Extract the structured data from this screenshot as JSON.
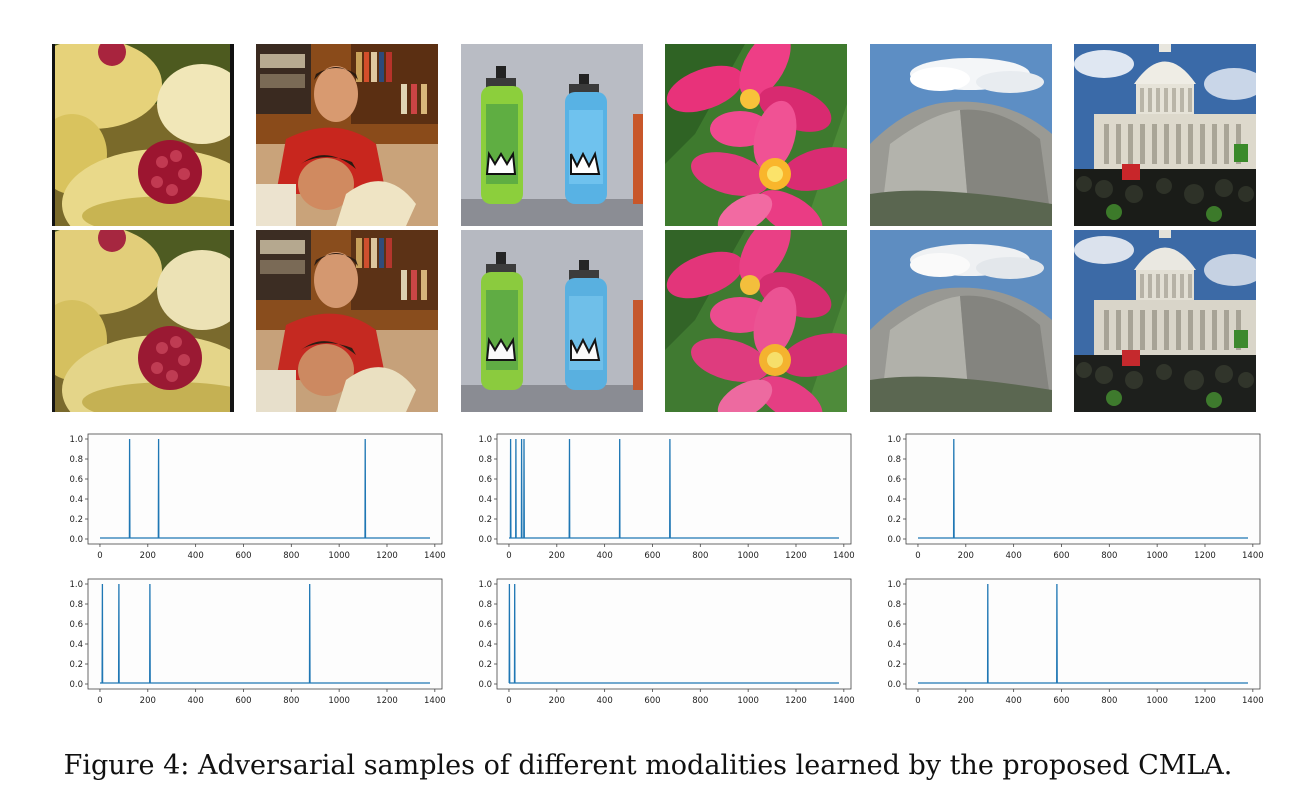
{
  "caption": "Figure 4: Adversarial samples of different modalities learned by the proposed CMLA.",
  "images": {
    "rows": [
      "original",
      "adversarial"
    ],
    "tiles": [
      "cupcakes-raspberry",
      "two-men-laughing",
      "spray-cans",
      "pink-plumeria-flower",
      "half-dome-mountain",
      "capitol-building-crowd"
    ]
  },
  "chart_data": [
    {
      "type": "line",
      "x": [
        0,
        123,
        124,
        125,
        244,
        245,
        246,
        1108,
        1109,
        1110,
        1380
      ],
      "y": [
        0.01,
        0.01,
        1.0,
        0.01,
        0.01,
        1.0,
        0.01,
        0.01,
        1.0,
        0.01,
        0.01
      ],
      "xlim": [
        -50,
        1430
      ],
      "ylim": [
        -0.05,
        1.05
      ],
      "xticks": [
        0,
        200,
        400,
        600,
        800,
        1000,
        1200,
        1400
      ],
      "yticks": [
        "0.0",
        "0.2",
        "0.4",
        "0.6",
        "0.8",
        "1.0"
      ],
      "color": "#1f77b4"
    },
    {
      "type": "line",
      "x": [
        0,
        6,
        7,
        8,
        28,
        29,
        30,
        52,
        53,
        54,
        62,
        63,
        64,
        252,
        253,
        254,
        462,
        463,
        464,
        672,
        673,
        674,
        1380
      ],
      "y": [
        0.01,
        0.01,
        1.0,
        0.01,
        0.01,
        1.0,
        0.01,
        0.01,
        1.0,
        0.01,
        0.01,
        1.0,
        0.01,
        0.01,
        1.0,
        0.01,
        0.01,
        1.0,
        0.01,
        0.01,
        1.0,
        0.01,
        0.01
      ],
      "xlim": [
        -50,
        1430
      ],
      "ylim": [
        -0.05,
        1.05
      ],
      "xticks": [
        0,
        200,
        400,
        600,
        800,
        1000,
        1200,
        1400
      ],
      "yticks": [
        "0.0",
        "0.2",
        "0.4",
        "0.6",
        "0.8",
        "1.0"
      ],
      "color": "#1f77b4"
    },
    {
      "type": "line",
      "x": [
        0,
        149,
        150,
        151,
        1380
      ],
      "y": [
        0.01,
        0.01,
        1.0,
        0.01,
        0.01
      ],
      "xlim": [
        -50,
        1430
      ],
      "ylim": [
        -0.05,
        1.05
      ],
      "xticks": [
        0,
        200,
        400,
        600,
        800,
        1000,
        1200,
        1400
      ],
      "yticks": [
        "0.0",
        "0.2",
        "0.4",
        "0.6",
        "0.8",
        "1.0"
      ],
      "color": "#1f77b4"
    },
    {
      "type": "line",
      "x": [
        0,
        9,
        10,
        11,
        78,
        79,
        80,
        208,
        209,
        210,
        876,
        877,
        878,
        1380
      ],
      "y": [
        0.01,
        0.01,
        1.0,
        0.01,
        0.01,
        1.0,
        0.01,
        0.01,
        1.0,
        0.01,
        0.01,
        1.0,
        0.01,
        0.01
      ],
      "xlim": [
        -50,
        1430
      ],
      "ylim": [
        -0.05,
        1.05
      ],
      "xticks": [
        0,
        200,
        400,
        600,
        800,
        1000,
        1200,
        1400
      ],
      "yticks": [
        "0.0",
        "0.2",
        "0.4",
        "0.6",
        "0.8",
        "1.0"
      ],
      "color": "#1f77b4"
    },
    {
      "type": "line",
      "x": [
        0,
        1,
        2,
        3,
        23,
        24,
        25,
        1380
      ],
      "y": [
        0.01,
        0.01,
        1.0,
        0.01,
        0.01,
        1.0,
        0.01,
        0.01
      ],
      "xlim": [
        -50,
        1430
      ],
      "ylim": [
        -0.05,
        1.05
      ],
      "xticks": [
        0,
        200,
        400,
        600,
        800,
        1000,
        1200,
        1400
      ],
      "yticks": [
        "0.0",
        "0.2",
        "0.4",
        "0.6",
        "0.8",
        "1.0"
      ],
      "color": "#1f77b4"
    },
    {
      "type": "line",
      "x": [
        0,
        291,
        292,
        293,
        580,
        581,
        582,
        1380
      ],
      "y": [
        0.01,
        0.01,
        1.0,
        0.01,
        0.01,
        1.0,
        0.01,
        0.01
      ],
      "xlim": [
        -50,
        1430
      ],
      "ylim": [
        -0.05,
        1.05
      ],
      "xticks": [
        0,
        200,
        400,
        600,
        800,
        1000,
        1200,
        1400
      ],
      "yticks": [
        "0.0",
        "0.2",
        "0.4",
        "0.6",
        "0.8",
        "1.0"
      ],
      "color": "#1f77b4"
    }
  ]
}
